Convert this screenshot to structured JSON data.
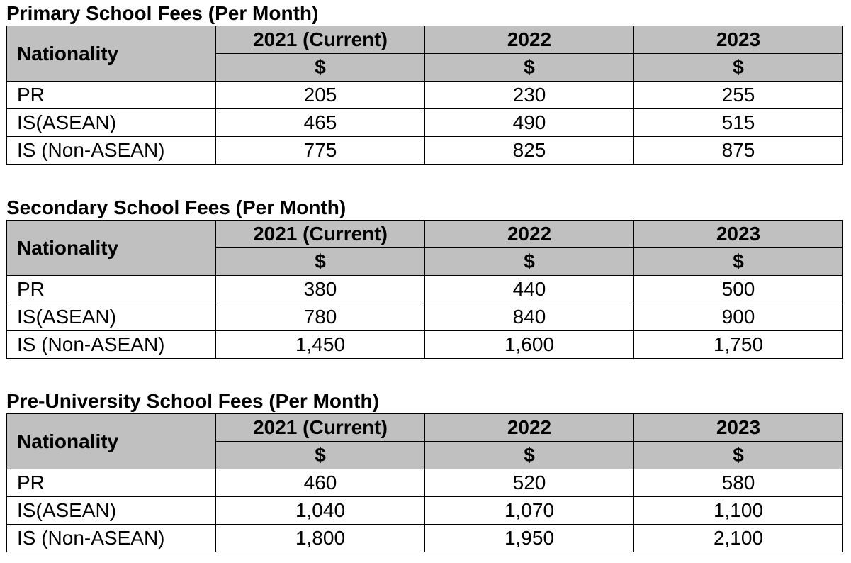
{
  "column_header": "Nationality",
  "currency_symbol": "$",
  "years": [
    "2021 (Current)",
    "2022",
    "2023"
  ],
  "tables": [
    {
      "title": "Primary School Fees (Per Month)",
      "rows": [
        {
          "label": "PR",
          "values": [
            "205",
            "230",
            "255"
          ]
        },
        {
          "label": "IS(ASEAN)",
          "values": [
            "465",
            "490",
            "515"
          ]
        },
        {
          "label": "IS (Non-ASEAN)",
          "values": [
            "775",
            "825",
            "875"
          ]
        }
      ]
    },
    {
      "title": "Secondary School Fees (Per Month)",
      "rows": [
        {
          "label": "PR",
          "values": [
            "380",
            "440",
            "500"
          ]
        },
        {
          "label": "IS(ASEAN)",
          "values": [
            "780",
            "840",
            "900"
          ]
        },
        {
          "label": "IS (Non-ASEAN)",
          "values": [
            "1,450",
            "1,600",
            "1,750"
          ]
        }
      ]
    },
    {
      "title": "Pre-University School Fees (Per Month)",
      "rows": [
        {
          "label": "PR",
          "values": [
            "460",
            "520",
            "580"
          ]
        },
        {
          "label": "IS(ASEAN)",
          "values": [
            "1,040",
            "1,070",
            "1,100"
          ]
        },
        {
          "label": "IS (Non-ASEAN)",
          "values": [
            "1,800",
            "1,950",
            "2,100"
          ]
        }
      ]
    }
  ]
}
